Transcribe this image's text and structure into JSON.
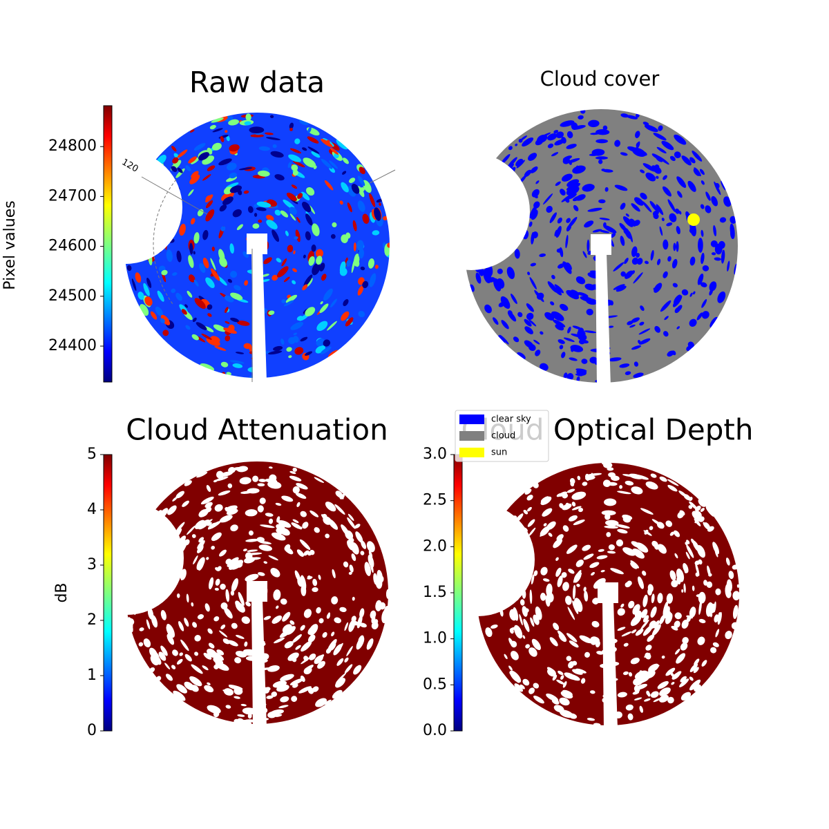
{
  "chart_data": [
    {
      "type": "image",
      "title": "Raw data",
      "annotations": [
        "120"
      ],
      "colorbar": {
        "label": "Pixel values",
        "colormap": "jet",
        "lim": [
          24328,
          24882
        ],
        "ticks": [
          24400,
          24500,
          24600,
          24700,
          24800
        ]
      }
    },
    {
      "type": "image",
      "title": "Cloud cover",
      "legend": [
        {
          "name": "clear sky",
          "color": "#0000ff"
        },
        {
          "name": "cloud",
          "color": "#808080"
        },
        {
          "name": "sun",
          "color": "#ffff00"
        }
      ]
    },
    {
      "type": "image",
      "title": "Cloud Attenuation",
      "colorbar": {
        "label": "dB",
        "colormap": "jet",
        "lim": [
          0,
          5
        ],
        "ticks": [
          0,
          1,
          2,
          3,
          4,
          5
        ]
      }
    },
    {
      "type": "image",
      "title": "Cloud Optical Depth",
      "colorbar": {
        "colormap": "jet",
        "lim": [
          0,
          3
        ],
        "ticks": [
          {
            "value": 0,
            "label": "0.0"
          },
          {
            "value": 0.5,
            "label": "0.5"
          },
          {
            "value": 1,
            "label": "1.0"
          },
          {
            "value": 1.5,
            "label": "1.5"
          },
          {
            "value": 2,
            "label": "2.0"
          },
          {
            "value": 2.5,
            "label": "2.5"
          },
          {
            "value": 3,
            "label": "3.0"
          }
        ]
      }
    }
  ]
}
